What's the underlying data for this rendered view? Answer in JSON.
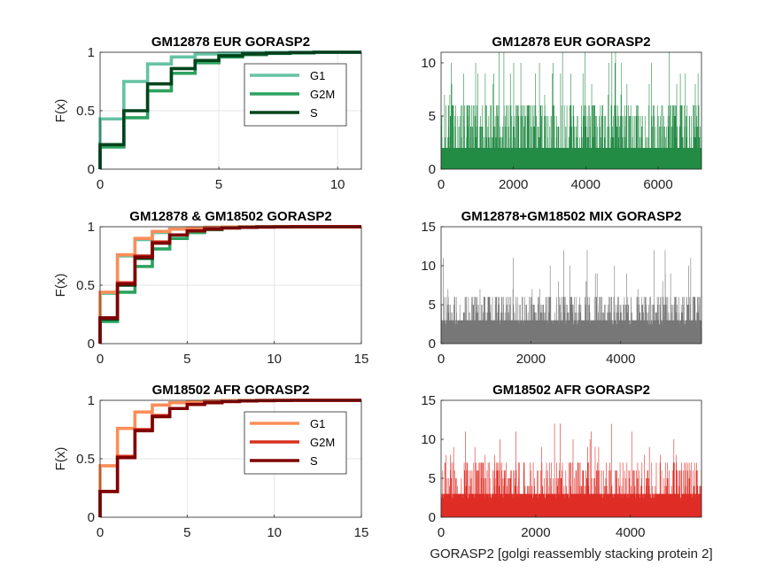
{
  "figure": {
    "xlabel": "GORASP2 [golgi reassembly stacking protein 2]"
  },
  "chart_data": [
    {
      "id": "ecdf_eur",
      "type": "line",
      "title": "GM12878 EUR GORASP2",
      "xlabel": "",
      "ylabel": "F(x)",
      "xlim": [
        0,
        11
      ],
      "ylim": [
        0,
        1
      ],
      "xticks": [
        0,
        5,
        10
      ],
      "yticks": [
        0,
        0.5,
        1
      ],
      "grid": true,
      "legend": {
        "placement": "top-right",
        "entries": [
          "G1",
          "G2M",
          "S"
        ]
      },
      "series": [
        {
          "name": "G1",
          "color": "#66c2a4",
          "x": [
            0,
            1,
            2,
            3,
            4,
            5,
            6,
            7,
            8,
            9,
            10,
            11
          ],
          "y": [
            0.43,
            0.75,
            0.9,
            0.96,
            0.985,
            0.993,
            0.997,
            0.999,
            1,
            1,
            1,
            1
          ]
        },
        {
          "name": "G2M",
          "color": "#2ca25f",
          "x": [
            0,
            1,
            2,
            3,
            4,
            5,
            6,
            7,
            8,
            9,
            10,
            11
          ],
          "y": [
            0.19,
            0.44,
            0.67,
            0.82,
            0.91,
            0.96,
            0.98,
            0.99,
            0.995,
            1,
            1,
            1
          ]
        },
        {
          "name": "S",
          "color": "#00441b",
          "x": [
            0,
            1,
            2,
            3,
            4,
            5,
            6,
            7,
            8,
            9,
            10,
            11
          ],
          "y": [
            0.21,
            0.5,
            0.73,
            0.86,
            0.93,
            0.97,
            0.985,
            0.993,
            0.997,
            1,
            1,
            1
          ]
        }
      ]
    },
    {
      "id": "counts_eur",
      "type": "bar",
      "title": "GM12878 EUR GORASP2",
      "xlabel": "",
      "ylabel": "",
      "xlim": [
        0,
        7200
      ],
      "ylim": [
        0,
        11
      ],
      "xticks": [
        0,
        2000,
        4000,
        6000
      ],
      "yticks": [
        0,
        5,
        10
      ],
      "color": "#238b45",
      "n_cells": 7200,
      "profile": {
        "base_max": 2,
        "mid_max": 6,
        "high_max": 11
      }
    },
    {
      "id": "ecdf_mix",
      "type": "line",
      "title": "GM12878 & GM18502 GORASP2",
      "xlabel": "",
      "ylabel": "F(x)",
      "xlim": [
        0,
        15
      ],
      "ylim": [
        0,
        1
      ],
      "xticks": [
        0,
        5,
        10,
        15
      ],
      "yticks": [
        0,
        0.5,
        1
      ],
      "grid": true,
      "series": [
        {
          "name": "",
          "color": "#2ca25f",
          "x": [
            0,
            1,
            2,
            3,
            4,
            5,
            6,
            7,
            8,
            9,
            10
          ],
          "y": [
            0.19,
            0.44,
            0.66,
            0.81,
            0.9,
            0.95,
            0.975,
            0.99,
            0.995,
            0.999,
            1
          ]
        },
        {
          "name": "",
          "color": "#66c2a4",
          "x": [
            0,
            1,
            2,
            3,
            4,
            5,
            6,
            7,
            8,
            9,
            10
          ],
          "y": [
            0.43,
            0.75,
            0.89,
            0.95,
            0.98,
            0.99,
            0.995,
            0.998,
            1,
            1,
            1
          ]
        },
        {
          "name": "",
          "color": "#00441b",
          "x": [
            0,
            1,
            2,
            3,
            4,
            5,
            6,
            7,
            8,
            9,
            10
          ],
          "y": [
            0.21,
            0.5,
            0.73,
            0.86,
            0.93,
            0.97,
            0.985,
            0.993,
            0.997,
            1,
            1
          ]
        },
        {
          "name": "",
          "color": "#fc8d59",
          "x": [
            0,
            1,
            2,
            3,
            4,
            5,
            6,
            7,
            8,
            9,
            10,
            11,
            12
          ],
          "y": [
            0.44,
            0.76,
            0.9,
            0.96,
            0.98,
            0.99,
            0.995,
            0.998,
            0.999,
            1,
            1,
            1,
            1
          ]
        },
        {
          "name": "",
          "color": "#d7301f",
          "x": [
            0,
            1,
            2,
            3,
            4,
            5,
            6,
            7,
            8,
            9,
            10,
            11,
            12
          ],
          "y": [
            0.22,
            0.52,
            0.75,
            0.87,
            0.93,
            0.965,
            0.98,
            0.99,
            0.995,
            0.998,
            0.999,
            1,
            1
          ]
        },
        {
          "name": "",
          "color": "#7f0000",
          "x": [
            0,
            1,
            2,
            3,
            4,
            5,
            6,
            7,
            8,
            9,
            10,
            11,
            12
          ],
          "y": [
            0.22,
            0.51,
            0.74,
            0.86,
            0.93,
            0.965,
            0.98,
            0.99,
            0.995,
            0.998,
            0.999,
            1,
            1
          ]
        }
      ]
    },
    {
      "id": "counts_mix",
      "type": "bar",
      "title": "GM12878+GM18502 MIX GORASP2",
      "xlabel": "",
      "ylabel": "",
      "xlim": [
        0,
        5800
      ],
      "ylim": [
        0,
        15
      ],
      "xticks": [
        0,
        2000,
        4000
      ],
      "yticks": [
        0,
        5,
        10,
        15
      ],
      "color": "#777777",
      "n_cells": 5800,
      "profile": {
        "base_max": 3,
        "mid_max": 6,
        "high_max": 12
      }
    },
    {
      "id": "ecdf_afr",
      "type": "line",
      "title": "GM18502 AFR GORASP2",
      "xlabel": "",
      "ylabel": "F(x)",
      "xlim": [
        0,
        15
      ],
      "ylim": [
        0,
        1
      ],
      "xticks": [
        0,
        5,
        10,
        15
      ],
      "yticks": [
        0,
        0.5,
        1
      ],
      "grid": true,
      "legend": {
        "placement": "top-right",
        "entries": [
          "G1",
          "G2M",
          "S"
        ]
      },
      "series": [
        {
          "name": "G1",
          "color": "#fc8d59",
          "x": [
            0,
            1,
            2,
            3,
            4,
            5,
            6,
            7,
            8,
            9,
            10,
            11,
            12
          ],
          "y": [
            0.44,
            0.76,
            0.9,
            0.96,
            0.98,
            0.99,
            0.995,
            0.998,
            0.999,
            1,
            1,
            1,
            1
          ]
        },
        {
          "name": "G2M",
          "color": "#d7301f",
          "x": [
            0,
            1,
            2,
            3,
            4,
            5,
            6,
            7,
            8,
            9,
            10,
            11,
            12
          ],
          "y": [
            0.22,
            0.52,
            0.75,
            0.87,
            0.93,
            0.965,
            0.98,
            0.99,
            0.995,
            0.998,
            0.999,
            1,
            1
          ]
        },
        {
          "name": "S",
          "color": "#7f0000",
          "x": [
            0,
            1,
            2,
            3,
            4,
            5,
            6,
            7,
            8,
            9,
            10,
            11,
            12
          ],
          "y": [
            0.22,
            0.51,
            0.74,
            0.86,
            0.93,
            0.965,
            0.98,
            0.99,
            0.995,
            0.998,
            0.999,
            1,
            1
          ]
        }
      ]
    },
    {
      "id": "counts_afr",
      "type": "bar",
      "title": "GM18502 AFR GORASP2",
      "xlabel": "GORASP2 [golgi reassembly stacking protein 2]",
      "ylabel": "",
      "xlim": [
        0,
        5500
      ],
      "ylim": [
        0,
        15
      ],
      "xticks": [
        0,
        2000,
        4000
      ],
      "yticks": [
        0,
        5,
        10,
        15
      ],
      "color": "#de2d26",
      "n_cells": 5500,
      "profile": {
        "base_max": 3,
        "mid_max": 7,
        "high_max": 12
      }
    }
  ]
}
